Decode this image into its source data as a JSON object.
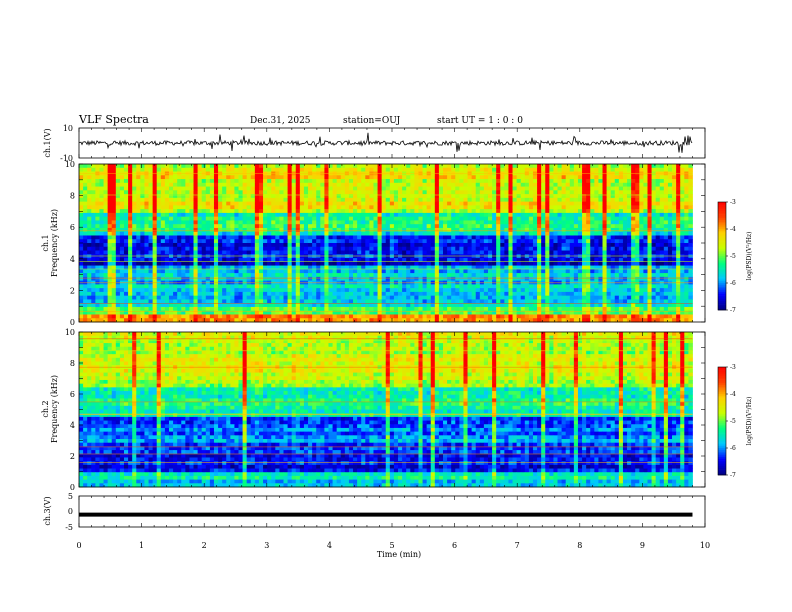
{
  "header": {
    "title": "VLF Spectra",
    "date": "Dec.31, 2025",
    "station": "station=OUJ",
    "start": "start  UT =  1 : 0  : 0"
  },
  "chart_data": [
    {
      "type": "line",
      "ylabel": "ch.1(V)",
      "ylim": [
        -10,
        10
      ],
      "yticks": [
        "10",
        "-10"
      ],
      "xlim": [
        0,
        10
      ],
      "series": [
        {
          "x": [
            0,
            9.8
          ],
          "y": [
            0,
            0
          ]
        }
      ]
    },
    {
      "type": "heatmap",
      "ylabel": "ch.1\nFrequency (kHz)",
      "ylim": [
        0,
        10
      ],
      "yticks": [
        "0",
        "2",
        "4",
        "6",
        "8",
        "10"
      ],
      "xlim": [
        0,
        10
      ],
      "colorbar": {
        "label": "log(PSD)(V²/Hz)",
        "range": [
          -7,
          -3
        ],
        "ticks": [
          "-3",
          "-4",
          "-5",
          "-6",
          "-7"
        ]
      },
      "colorscale": [
        "#000080",
        "#0000ff",
        "#00c8ff",
        "#00ff80",
        "#c8ff00",
        "#ffd000",
        "#ff4000",
        "#ff0000"
      ]
    },
    {
      "type": "heatmap",
      "ylabel": "ch.2\nFrequency (kHz)",
      "ylim": [
        0,
        10
      ],
      "yticks": [
        "0",
        "2",
        "4",
        "6",
        "8",
        "10"
      ],
      "xlim": [
        0,
        10
      ],
      "colorbar": {
        "label": "log(PSD)(V²/Hz)",
        "range": [
          -7,
          -3
        ],
        "ticks": [
          "-3",
          "-4",
          "-5",
          "-6",
          "-7"
        ]
      },
      "colorscale": [
        "#000080",
        "#0000ff",
        "#00c8ff",
        "#00ff80",
        "#c8ff00",
        "#ffd000",
        "#ff4000",
        "#ff0000"
      ]
    },
    {
      "type": "line",
      "ylabel": "ch.3(V)",
      "ylim": [
        -5,
        5
      ],
      "yticks": [
        "5",
        "0",
        "-5"
      ],
      "xlim": [
        0,
        10
      ],
      "xlabel": "Time (min)",
      "xticks": [
        "0",
        "1",
        "2",
        "3",
        "4",
        "5",
        "6",
        "7",
        "8",
        "9",
        "10"
      ],
      "series": [
        {
          "x": [
            0,
            9.8
          ],
          "y": [
            -1,
            -1
          ]
        }
      ]
    }
  ]
}
